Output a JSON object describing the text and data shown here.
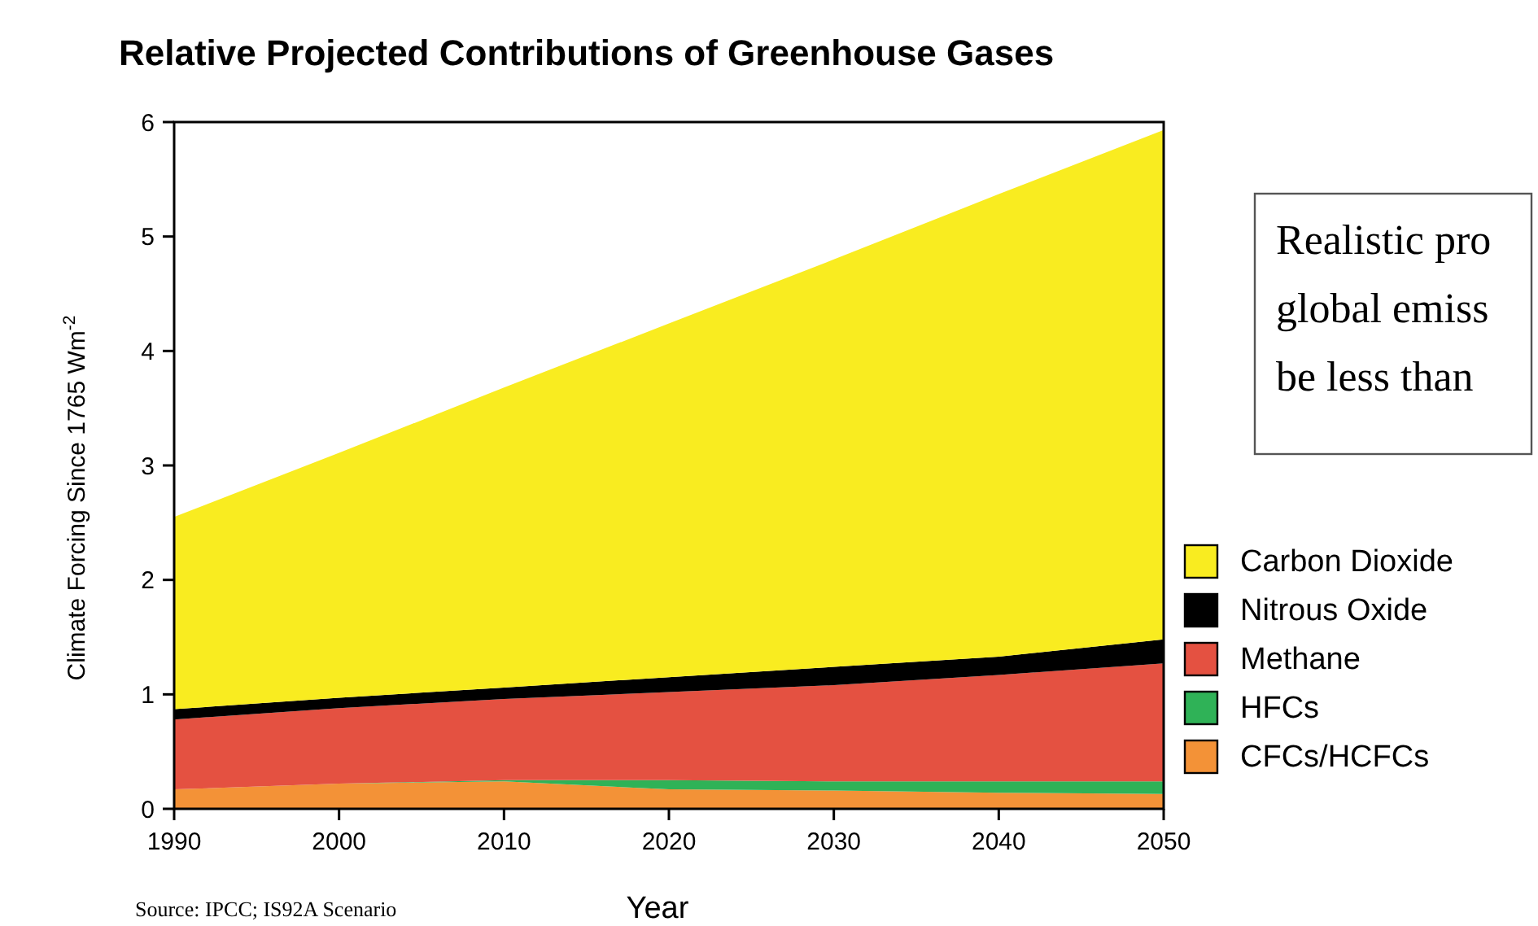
{
  "chart_data": {
    "type": "area",
    "stacked": true,
    "title": "Relative Projected Contributions of Greenhouse Gases",
    "xlabel": "Year",
    "ylabel": "Climate Forcing Since 1765 Wm$^{-2}$",
    "x": [
      1990,
      2000,
      2010,
      2020,
      2030,
      2040,
      2050
    ],
    "series": [
      {
        "name": "CFCs/HCFCs",
        "color": "#f39237",
        "values": [
          0.17,
          0.22,
          0.24,
          0.17,
          0.16,
          0.14,
          0.13
        ]
      },
      {
        "name": "HFCs",
        "color": "#2fb257",
        "values": [
          0,
          0,
          0.01,
          0.08,
          0.08,
          0.1,
          0.11
        ]
      },
      {
        "name": "Methane",
        "color": "#e45141",
        "values": [
          0.61,
          0.66,
          0.71,
          0.77,
          0.84,
          0.93,
          1.03
        ]
      },
      {
        "name": "Nitrous Oxide",
        "color": "#000000",
        "values": [
          0.09,
          0.09,
          0.1,
          0.13,
          0.16,
          0.16,
          0.21
        ]
      },
      {
        "name": "Carbon Dioxide",
        "color": "#f9ec20",
        "values": [
          1.68,
          2.14,
          2.62,
          3.09,
          3.56,
          4.04,
          4.45
        ]
      }
    ],
    "xlim": [
      1990,
      2050
    ],
    "xticks": [
      1990,
      2000,
      2010,
      2020,
      2030,
      2040,
      2050
    ],
    "ylim": [
      0,
      6
    ],
    "yticks": [
      0,
      1,
      2,
      3,
      4,
      5,
      6
    ],
    "grid": false,
    "legend": "right",
    "annotations": [
      "Realistic pro\nglobal emiss\nbe less than",
      "Source: IPCC; IS92A Scenario"
    ]
  }
}
